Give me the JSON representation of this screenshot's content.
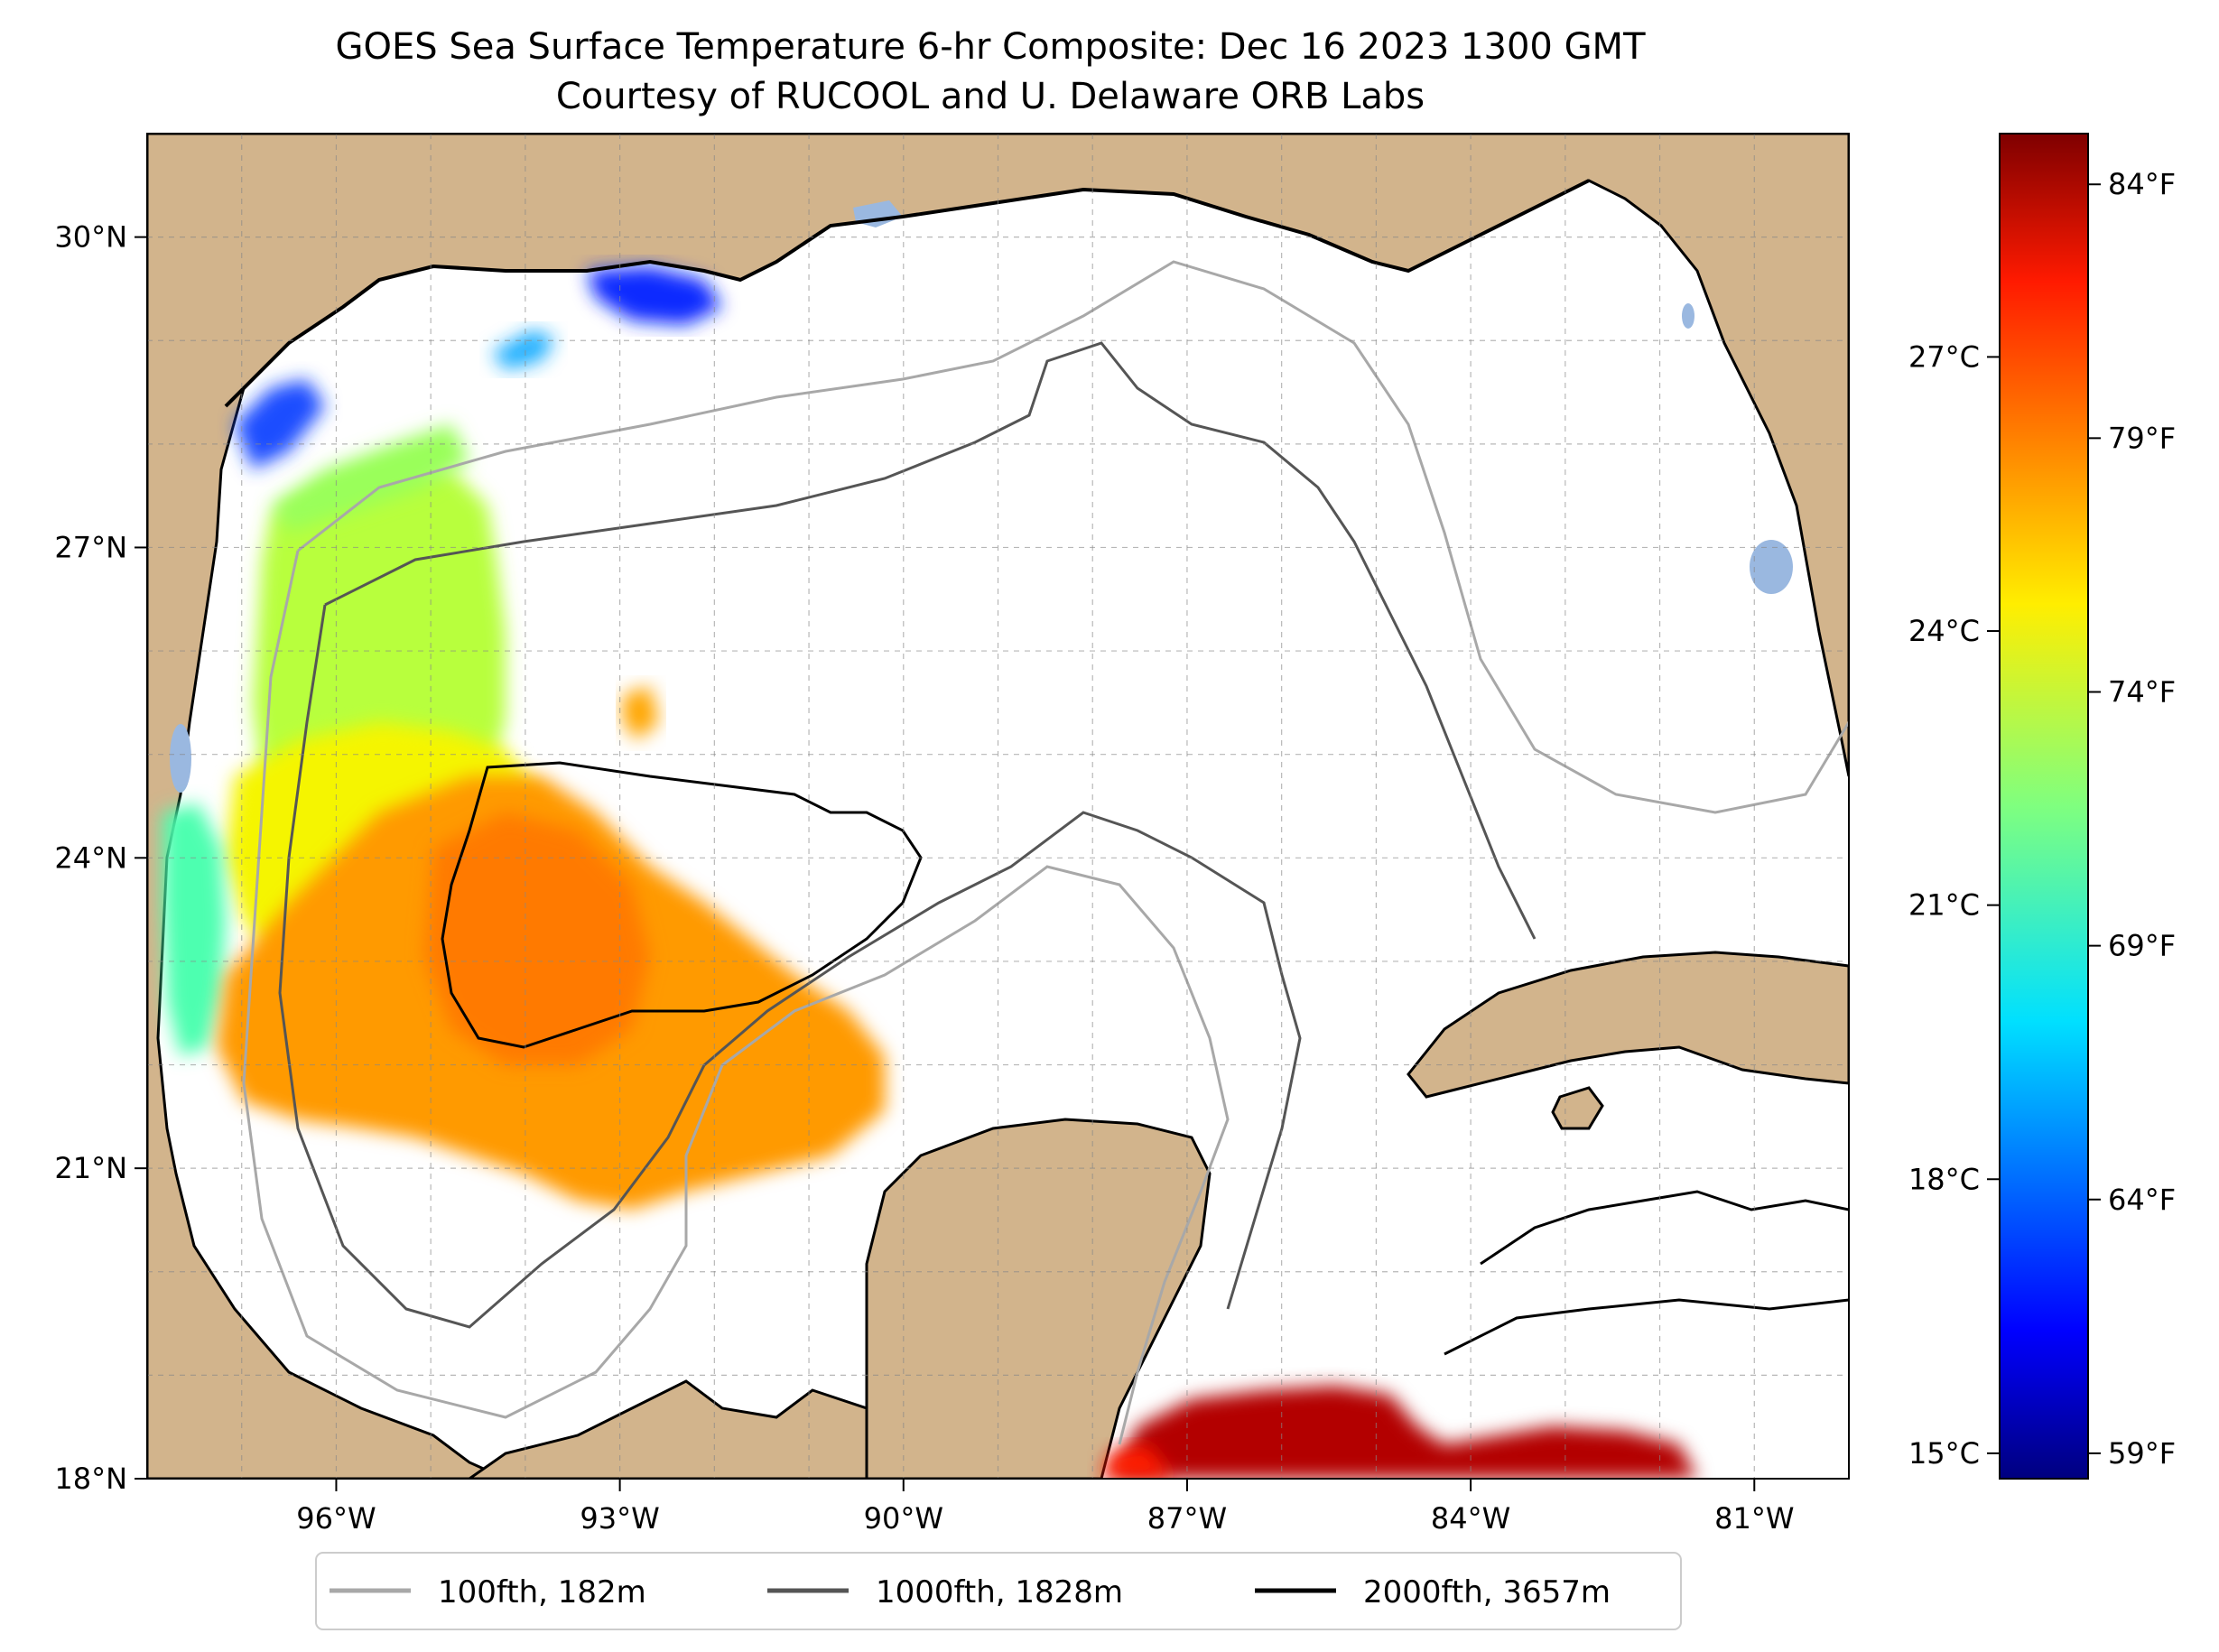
{
  "title": {
    "line1": "GOES Sea Surface Temperature 6-hr Composite: Dec 16 2023 1300 GMT",
    "line2": "Courtesy of RUCOOL and U. Delaware ORB Labs"
  },
  "map": {
    "lon_range": [
      -98,
      -80
    ],
    "lat_range": [
      18,
      31
    ],
    "lon_ticks": [
      {
        "value": -96,
        "label": "96°W"
      },
      {
        "value": -93,
        "label": "93°W"
      },
      {
        "value": -90,
        "label": "90°W"
      },
      {
        "value": -87,
        "label": "87°W"
      },
      {
        "value": -84,
        "label": "84°W"
      },
      {
        "value": -81,
        "label": "81°W"
      }
    ],
    "lat_ticks": [
      {
        "value": 18,
        "label": "18°N"
      },
      {
        "value": 21,
        "label": "21°N"
      },
      {
        "value": 24,
        "label": "24°N"
      },
      {
        "value": 27,
        "label": "27°N"
      },
      {
        "value": 30,
        "label": "30°N"
      }
    ],
    "grid": true,
    "land_color": "#d2b48c",
    "water_color": "#ffffff",
    "lake_color": "#9ab8e0"
  },
  "colorbar": {
    "colormap": "jet",
    "celsius_ticks": [
      {
        "value": 15,
        "label": "15°C"
      },
      {
        "value": 18,
        "label": "18°C"
      },
      {
        "value": 21,
        "label": "21°C"
      },
      {
        "value": 24,
        "label": "24°C"
      },
      {
        "value": 27,
        "label": "27°C"
      }
    ],
    "fahrenheit_ticks": [
      {
        "value": 59,
        "label": "59°F"
      },
      {
        "value": 64,
        "label": "64°F"
      },
      {
        "value": 69,
        "label": "69°F"
      },
      {
        "value": 74,
        "label": "74°F"
      },
      {
        "value": 79,
        "label": "79°F"
      },
      {
        "value": 84,
        "label": "84°F"
      }
    ],
    "range_f": [
      58.5,
      85
    ]
  },
  "legend": {
    "placement": "bottom",
    "items": [
      {
        "label": "100fth, 182m",
        "color": "#a8a8a8"
      },
      {
        "label": "1000fth, 1828m",
        "color": "#555555"
      },
      {
        "label": "2000fth, 3657m",
        "color": "#000000"
      }
    ]
  }
}
